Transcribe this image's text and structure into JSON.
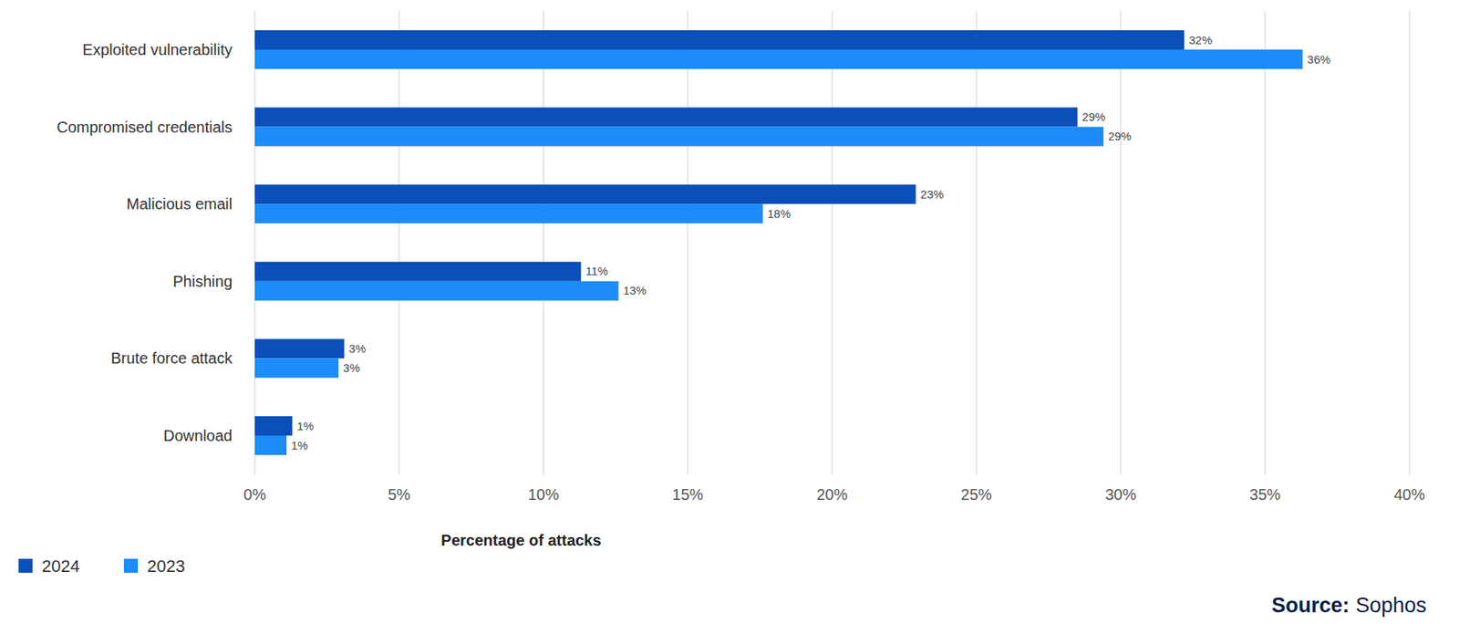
{
  "chart_data": {
    "type": "bar",
    "orientation": "horizontal",
    "categories": [
      "Exploited vulnerability",
      "Compromised credentials",
      "Malicious email",
      "Phishing",
      "Brute force attack",
      "Download"
    ],
    "series": [
      {
        "name": "2024",
        "color": "#0b4fb8",
        "values": [
          32.2,
          28.5,
          22.9,
          11.3,
          3.1,
          1.3
        ],
        "value_labels": [
          "32%",
          "29%",
          "23%",
          "11%",
          "3%",
          "1%"
        ]
      },
      {
        "name": "2023",
        "color": "#1d8cf8",
        "values": [
          36.3,
          29.4,
          17.6,
          12.6,
          2.9,
          1.1
        ],
        "value_labels": [
          "36%",
          "29%",
          "18%",
          "13%",
          "3%",
          "1%"
        ]
      }
    ],
    "x_label": "Percentage of attacks",
    "xlim": [
      0,
      40
    ],
    "xticks": [
      {
        "value": 0,
        "label": "0%"
      },
      {
        "value": 5,
        "label": "5%"
      },
      {
        "value": 10,
        "label": "10%"
      },
      {
        "value": 15,
        "label": "15%"
      },
      {
        "value": 20,
        "label": "20%"
      },
      {
        "value": 25,
        "label": "25%"
      },
      {
        "value": 30,
        "label": "30%"
      },
      {
        "value": 35,
        "label": "35%"
      },
      {
        "value": 40,
        "label": "40%"
      }
    ],
    "grid": true,
    "data_labels": true,
    "legend": "bottom-left",
    "source_label": "Source:",
    "source": "Sophos"
  }
}
